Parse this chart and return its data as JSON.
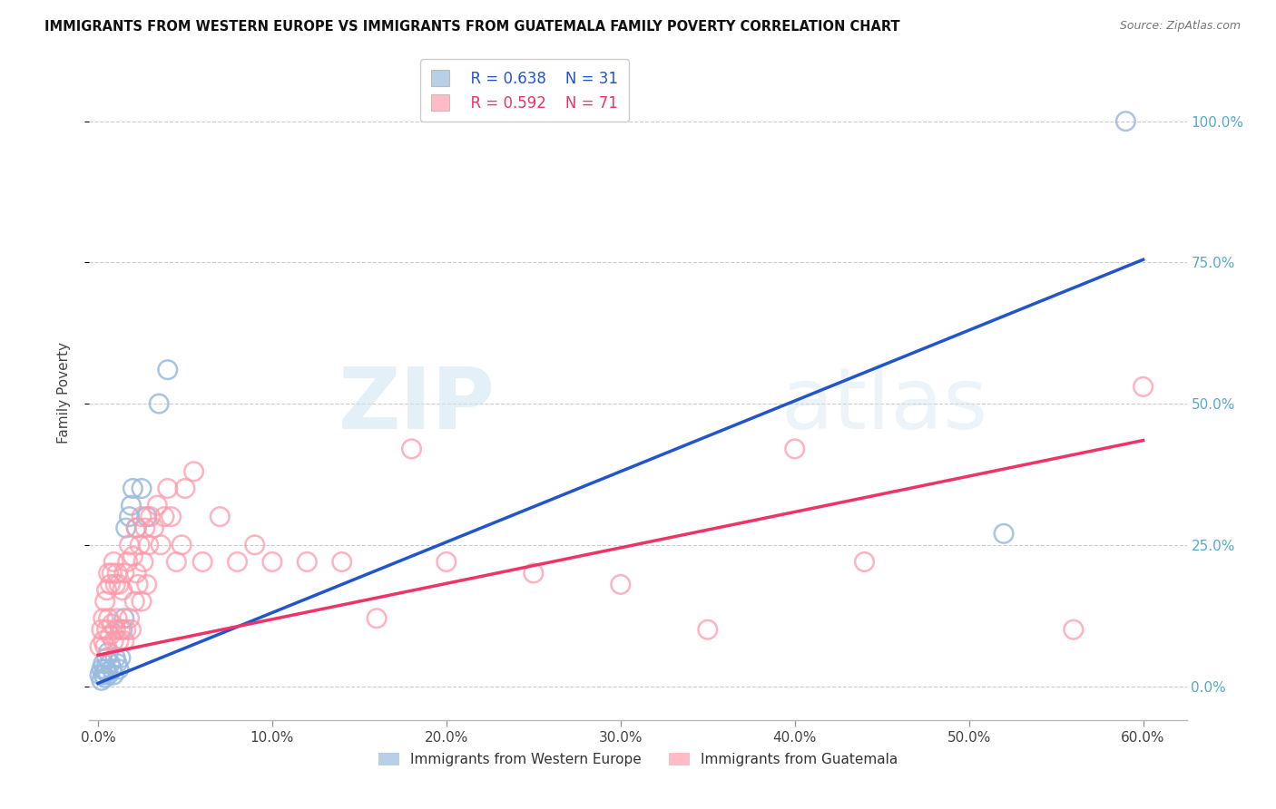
{
  "title": "IMMIGRANTS FROM WESTERN EUROPE VS IMMIGRANTS FROM GUATEMALA FAMILY POVERTY CORRELATION CHART",
  "source": "Source: ZipAtlas.com",
  "ylabel": "Family Poverty",
  "legend1_label": "Immigrants from Western Europe",
  "legend2_label": "Immigrants from Guatemala",
  "legend1_R": "R = 0.638",
  "legend1_N": "N = 31",
  "legend2_R": "R = 0.592",
  "legend2_N": "N = 71",
  "blue_scatter_color": "#99BBDD",
  "pink_scatter_color": "#FF99AA",
  "blue_line_color": "#2255CC",
  "pink_line_color": "#EE3366",
  "ytick_color": "#55AACC",
  "blue_line_x0": 0.0,
  "blue_line_y0": 0.005,
  "blue_line_x1": 0.6,
  "blue_line_y1": 0.755,
  "pink_line_x0": 0.0,
  "pink_line_y0": 0.055,
  "pink_line_x1": 0.6,
  "pink_line_y1": 0.435,
  "blue_points_x": [
    0.001,
    0.002,
    0.002,
    0.003,
    0.003,
    0.004,
    0.004,
    0.005,
    0.005,
    0.006,
    0.006,
    0.007,
    0.008,
    0.009,
    0.01,
    0.011,
    0.012,
    0.013,
    0.014,
    0.015,
    0.016,
    0.018,
    0.019,
    0.02,
    0.022,
    0.025,
    0.028,
    0.035,
    0.04,
    0.52,
    0.59
  ],
  "blue_points_y": [
    0.02,
    0.01,
    0.03,
    0.02,
    0.04,
    0.03,
    0.015,
    0.025,
    0.05,
    0.02,
    0.06,
    0.04,
    0.03,
    0.02,
    0.05,
    0.04,
    0.03,
    0.05,
    0.1,
    0.12,
    0.28,
    0.3,
    0.32,
    0.35,
    0.28,
    0.35,
    0.3,
    0.5,
    0.56,
    0.27,
    1.0
  ],
  "pink_points_x": [
    0.001,
    0.002,
    0.003,
    0.003,
    0.004,
    0.004,
    0.005,
    0.005,
    0.006,
    0.006,
    0.007,
    0.007,
    0.008,
    0.008,
    0.009,
    0.009,
    0.01,
    0.01,
    0.011,
    0.011,
    0.012,
    0.012,
    0.013,
    0.014,
    0.015,
    0.015,
    0.016,
    0.017,
    0.018,
    0.018,
    0.019,
    0.02,
    0.021,
    0.022,
    0.022,
    0.023,
    0.024,
    0.025,
    0.025,
    0.026,
    0.027,
    0.028,
    0.029,
    0.03,
    0.032,
    0.034,
    0.036,
    0.038,
    0.04,
    0.042,
    0.045,
    0.048,
    0.05,
    0.055,
    0.06,
    0.07,
    0.08,
    0.09,
    0.1,
    0.12,
    0.14,
    0.16,
    0.18,
    0.2,
    0.25,
    0.3,
    0.35,
    0.4,
    0.44,
    0.56,
    0.6
  ],
  "pink_points_y": [
    0.07,
    0.1,
    0.08,
    0.12,
    0.07,
    0.15,
    0.1,
    0.17,
    0.12,
    0.2,
    0.09,
    0.18,
    0.11,
    0.2,
    0.08,
    0.22,
    0.1,
    0.18,
    0.12,
    0.2,
    0.08,
    0.18,
    0.1,
    0.17,
    0.08,
    0.2,
    0.1,
    0.22,
    0.12,
    0.25,
    0.1,
    0.23,
    0.15,
    0.2,
    0.28,
    0.18,
    0.25,
    0.15,
    0.3,
    0.22,
    0.28,
    0.18,
    0.25,
    0.3,
    0.28,
    0.32,
    0.25,
    0.3,
    0.35,
    0.3,
    0.22,
    0.25,
    0.35,
    0.38,
    0.22,
    0.3,
    0.22,
    0.25,
    0.22,
    0.22,
    0.22,
    0.12,
    0.42,
    0.22,
    0.2,
    0.18,
    0.1,
    0.42,
    0.22,
    0.1,
    0.53
  ],
  "x_ticks": [
    0.0,
    0.1,
    0.2,
    0.3,
    0.4,
    0.5,
    0.6
  ],
  "y_ticks": [
    0.0,
    0.25,
    0.5,
    0.75,
    1.0
  ],
  "xlim": [
    -0.005,
    0.625
  ],
  "ylim": [
    -0.06,
    1.1
  ]
}
